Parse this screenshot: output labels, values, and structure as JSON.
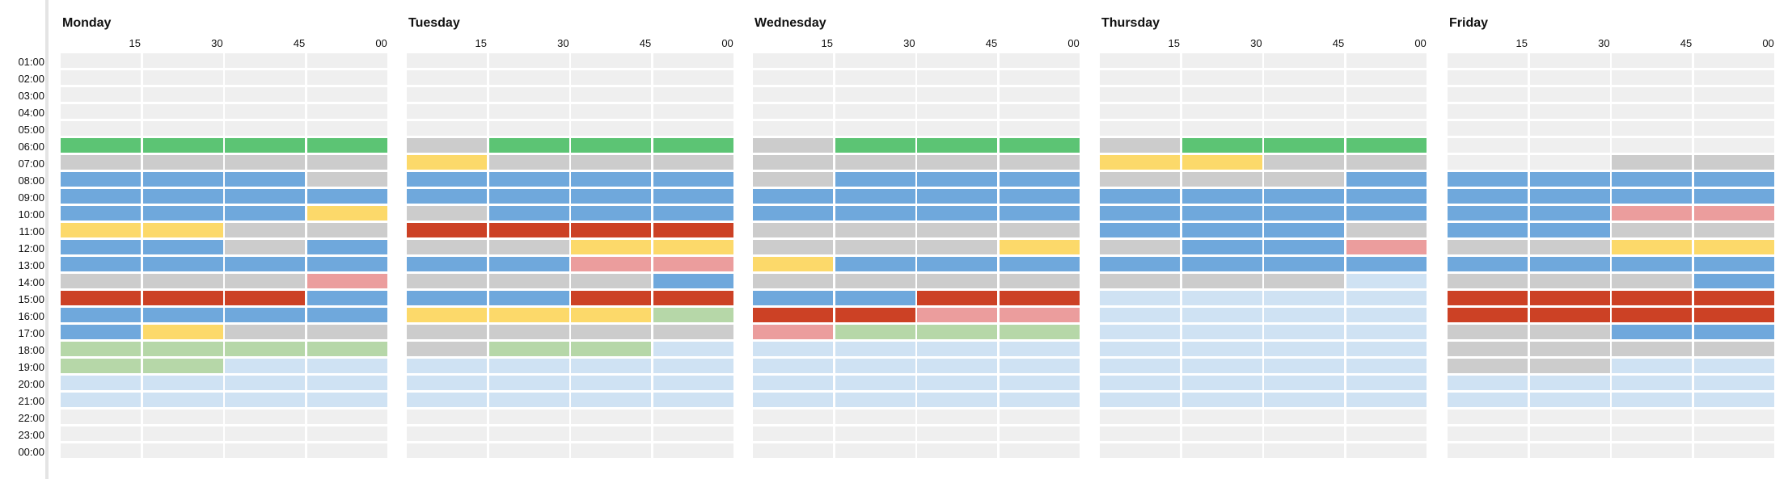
{
  "hours": [
    "01:00",
    "02:00",
    "03:00",
    "04:00",
    "05:00",
    "06:00",
    "07:00",
    "08:00",
    "09:00",
    "10:00",
    "11:00",
    "12:00",
    "13:00",
    "14:00",
    "15:00",
    "16:00",
    "17:00",
    "18:00",
    "19:00",
    "20:00",
    "21:00",
    "22:00",
    "23:00",
    "00:00"
  ],
  "quarters": [
    "15",
    "30",
    "45",
    "00"
  ],
  "colors": {
    "E": "#efefef",
    "G": "#5cc474",
    "S": "#cccccc",
    "B": "#6fa8dc",
    "Y": "#fcd96a",
    "R": "#cc4125",
    "P": "#eb9d9d",
    "L": "#b6d7a8",
    "K": "#cfe2f3"
  },
  "days": [
    {
      "name": "Monday",
      "rows": [
        "EEEE",
        "EEEE",
        "EEEE",
        "EEEE",
        "EEEE",
        "GGGG",
        "SSSS",
        "BBBS",
        "BBBB",
        "BBBY",
        "YYSS",
        "BBSB",
        "BBBB",
        "SSSP",
        "RRRB",
        "BBBB",
        "BYSS",
        "LLLL",
        "LLKK",
        "KKKK",
        "KKKK",
        "EEEE",
        "EEEE",
        "EEEE"
      ]
    },
    {
      "name": "Tuesday",
      "rows": [
        "EEEE",
        "EEEE",
        "EEEE",
        "EEEE",
        "EEEE",
        "SGGG",
        "YSSS",
        "BBBB",
        "BBBB",
        "SBBB",
        "RRRR",
        "SSYY",
        "BBPP",
        "SSSB",
        "BBRR",
        "YYYL",
        "SSSS",
        "SLLK",
        "KKKK",
        "KKKK",
        "KKKK",
        "EEEE",
        "EEEE",
        "EEEE"
      ]
    },
    {
      "name": "Wednesday",
      "rows": [
        "EEEE",
        "EEEE",
        "EEEE",
        "EEEE",
        "EEEE",
        "SGGG",
        "SSSS",
        "SBBB",
        "BBBB",
        "BBBB",
        "SSSS",
        "SSSY",
        "YBBB",
        "SSSS",
        "BBRR",
        "RRPP",
        "PLLL",
        "KKKK",
        "KKKK",
        "KKKK",
        "KKKK",
        "EEEE",
        "EEEE",
        "EEEE"
      ]
    },
    {
      "name": "Thursday",
      "rows": [
        "EEEE",
        "EEEE",
        "EEEE",
        "EEEE",
        "EEEE",
        "SGGG",
        "YYSS",
        "SSSB",
        "BBBB",
        "BBBB",
        "BBBS",
        "SBBP",
        "BBBB",
        "SSSK",
        "KKKK",
        "KKKK",
        "KKKK",
        "KKKK",
        "KKKK",
        "KKKK",
        "KKKK",
        "EEEE",
        "EEEE",
        "EEEE"
      ]
    },
    {
      "name": "Friday",
      "rows": [
        "EEEE",
        "EEEE",
        "EEEE",
        "EEEE",
        "EEEE",
        "EEEE",
        "EESS",
        "BBBB",
        "BBBB",
        "BBPP",
        "BBSS",
        "SSYY",
        "BBBB",
        "SSSB",
        "RRRR",
        "RRRR",
        "SSBB",
        "SSSS",
        "SSKK",
        "KKKK",
        "KKKK",
        "EEEE",
        "EEEE",
        "EEEE"
      ]
    }
  ]
}
